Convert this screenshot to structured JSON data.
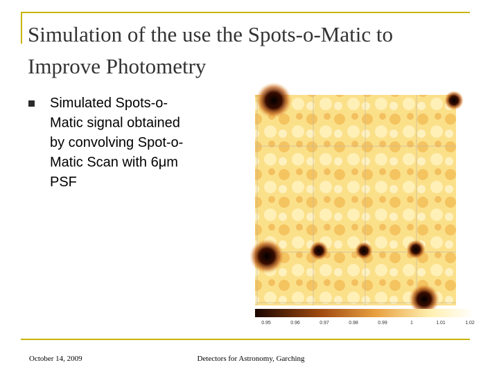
{
  "header": {
    "title_lines": [
      "Simulation of the use the Spots-o-Matic to",
      "Improve Photometry"
    ]
  },
  "bullet": {
    "lines": [
      "Simulated Spots-o-",
      "Matic signal obtained",
      "by convolving Spot-o-",
      "Matic Scan with 6μm",
      "PSF"
    ]
  },
  "colorbar": {
    "labels": [
      "0.95",
      "0.96",
      "0.97",
      "0.98",
      "0.99",
      "1",
      "1.01",
      "1.02"
    ]
  },
  "footer": {
    "date": "October 14, 2009",
    "event": "Detectors for Astronomy, Garching"
  }
}
